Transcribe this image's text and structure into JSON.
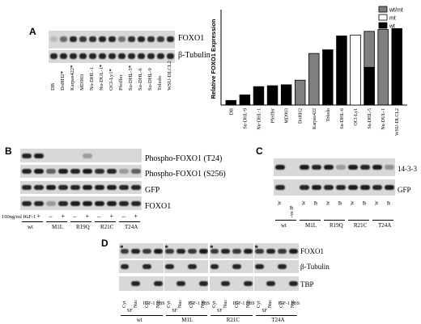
{
  "panelA": {
    "letter": "A",
    "blot_labels": [
      "FOXO1",
      "β-Tubulin"
    ],
    "cell_lines": [
      {
        "name": "DB",
        "mark": ""
      },
      {
        "name": "DoHH2",
        "mark": "*"
      },
      {
        "name": "Karpas422",
        "mark": "*"
      },
      {
        "name": "MD903",
        "mark": ""
      },
      {
        "name": "Nu-DHL-1",
        "mark": ""
      },
      {
        "name": "Nu-DUL-1",
        "mark": "*"
      },
      {
        "name": "OCI-Ly1",
        "mark": "*"
      },
      {
        "name": "Pfeiffer",
        "mark": ""
      },
      {
        "name": "Su-DHL-5",
        "mark": "*"
      },
      {
        "name": "Su-DHL-6",
        "mark": ""
      },
      {
        "name": "Su-DHL-9",
        "mark": ""
      },
      {
        "name": "Toledo",
        "mark": ""
      },
      {
        "name": "WSU-DLCL2",
        "mark": ""
      }
    ]
  },
  "chart_data": {
    "type": "bar",
    "title": "",
    "xlabel": "DLBCL Cell Line",
    "ylabel": "Relative FOXO1 Expression",
    "ylim": [
      0,
      1.0
    ],
    "legend": {
      "placement": "top-right",
      "entries": [
        {
          "label": "wt/mt",
          "color": "#7f7f7f"
        },
        {
          "label": "mt",
          "color": "#ffffff"
        },
        {
          "label": "wt",
          "color": "#000000"
        }
      ]
    },
    "categories": [
      "DB",
      "Su-DHL-9",
      "Nu-DHL-1",
      "Pfeiffer",
      "MD903",
      "DoHH2",
      "Karpas422",
      "Toledo",
      "Su-DHL-6",
      "OCI-Ly1",
      "Su-DHL-5",
      "Nu-DUL-1",
      "WSU-DLCL2"
    ],
    "values": [
      0.05,
      0.11,
      0.2,
      0.21,
      0.22,
      0.27,
      0.56,
      0.6,
      0.75,
      0.76,
      0.8,
      0.82,
      0.83
    ],
    "status": [
      "wt",
      "wt",
      "wt",
      "wt",
      "wt",
      "wt/mt",
      "wt/mt",
      "wt",
      "wt",
      "mt",
      "wt/mt",
      "wt/mt",
      "wt"
    ],
    "inner_split": [
      null,
      null,
      null,
      null,
      null,
      null,
      null,
      null,
      null,
      null,
      0.41,
      null,
      null
    ]
  },
  "panelB": {
    "letter": "B",
    "blot_labels": [
      "Phospho-FOXO1 (T24)",
      "Phospho-FOXO1 (S256)",
      "GFP",
      "FOXO1"
    ],
    "treatment_label": "100ng/ml IGF-1",
    "signs": [
      "–",
      "+",
      "–",
      "+",
      "–",
      "+",
      "–",
      "+",
      "–",
      "+"
    ],
    "groups": [
      "wt",
      "M1L",
      "R19Q",
      "R21C",
      "T24A"
    ]
  },
  "panelC": {
    "letter": "C",
    "blot_labels": [
      "14-3-3",
      "GFP"
    ],
    "lanes": [
      "W",
      "–ve IP",
      "W",
      "IP",
      "W",
      "IP",
      "W",
      "IP",
      "W",
      "IP"
    ],
    "groups": [
      "wt",
      "M1L",
      "R19Q",
      "R21C",
      "T24A"
    ]
  },
  "panelD": {
    "letter": "D",
    "blot_labels": [
      "FOXO1",
      "β-Tubulin",
      "TBP"
    ],
    "lanes": [
      "Cyt",
      "Nuc",
      "Cyt",
      "Nuc"
    ],
    "conditions": [
      "SF",
      "IGF-1 FBS"
    ],
    "groups": [
      "wt",
      "M1L",
      "R21C",
      "T24A"
    ],
    "star": "*"
  }
}
